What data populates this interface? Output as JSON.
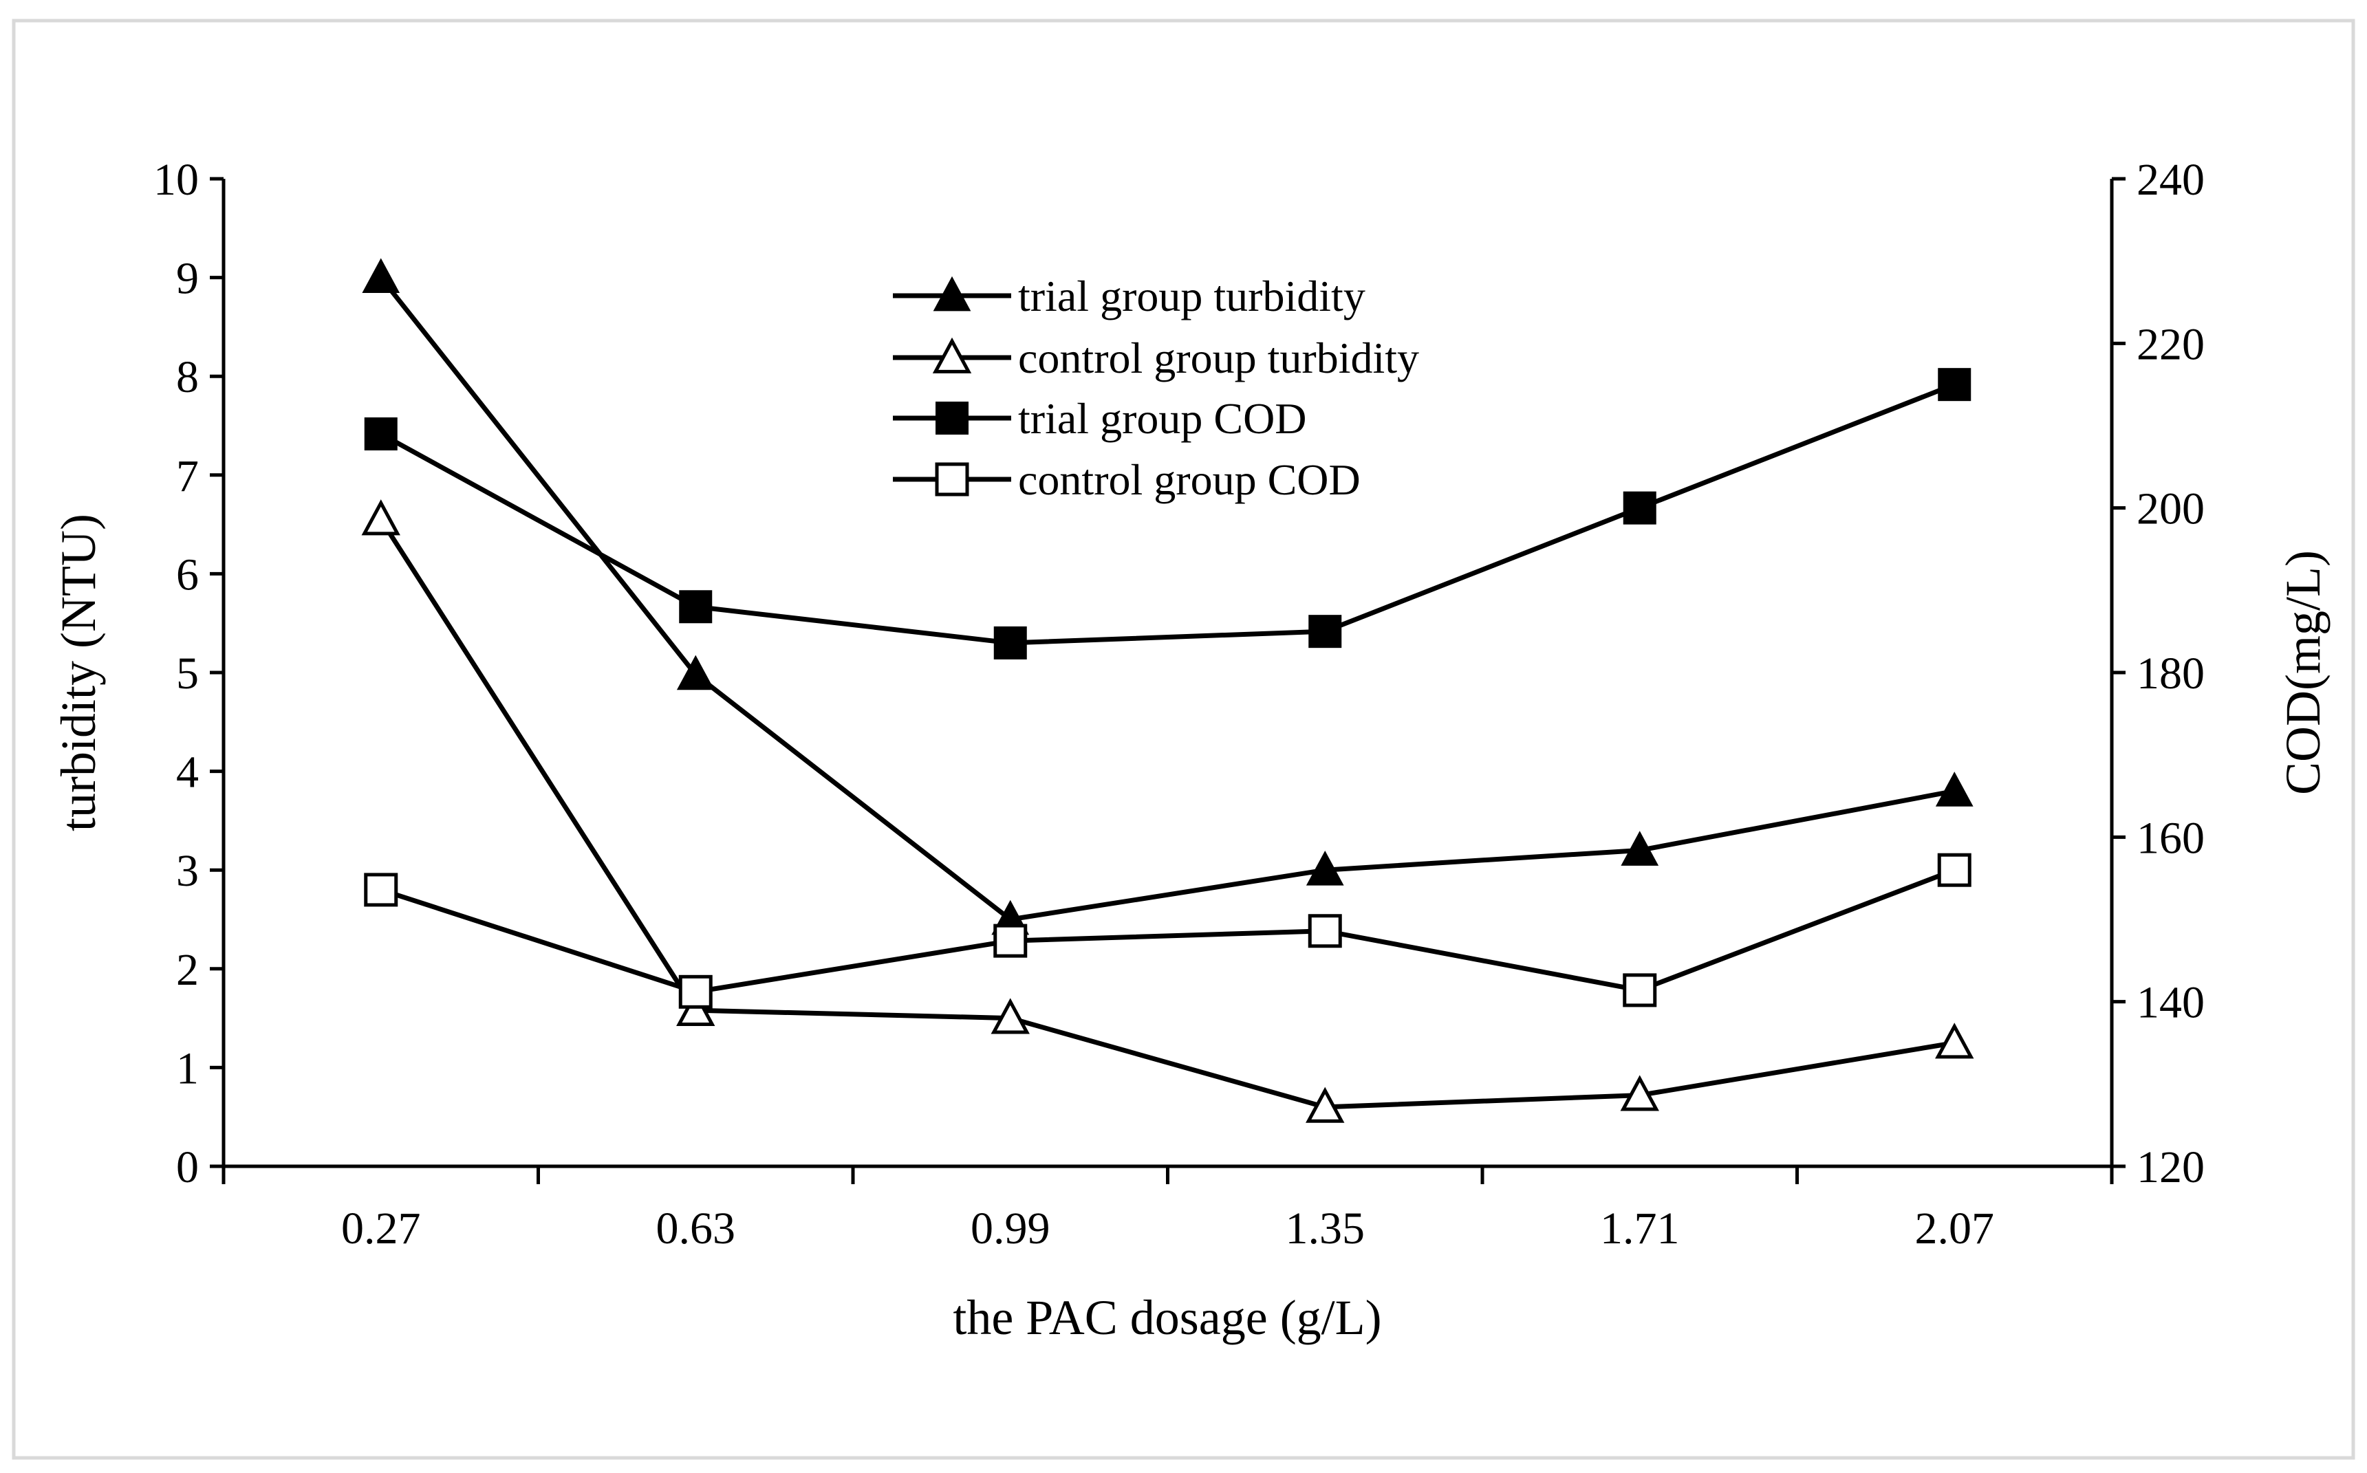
{
  "chart_data": {
    "type": "line",
    "x_categories": [
      "0.27",
      "0.63",
      "0.99",
      "1.35",
      "1.71",
      "2.07"
    ],
    "xlabel": "the PAC dosage (g/L)",
    "ylabel_left": "turbidity (NTU)",
    "ylabel_right": "COD(mg/L)",
    "ylim_left": [
      0,
      10
    ],
    "ylim_right": [
      120,
      240
    ],
    "yticks_left": [
      "0",
      "1",
      "2",
      "3",
      "4",
      "5",
      "6",
      "7",
      "8",
      "9",
      "10"
    ],
    "yticks_right": [
      "120",
      "140",
      "160",
      "180",
      "200",
      "220",
      "240"
    ],
    "legend_position": "top-center",
    "series": [
      {
        "name": "trial group turbidity",
        "axis": "left",
        "marker": "filled-triangle",
        "values": [
          9.0,
          4.98,
          2.5,
          3.0,
          3.2,
          3.8
        ]
      },
      {
        "name": "control group turbidity",
        "axis": "left",
        "marker": "open-triangle",
        "values": [
          6.55,
          1.58,
          1.5,
          0.6,
          0.72,
          1.25
        ]
      },
      {
        "name": "trial group COD",
        "axis": "right",
        "marker": "filled-square",
        "values": [
          209,
          188,
          183.6,
          185,
          200,
          215
        ]
      },
      {
        "name": "control group COD",
        "axis": "right",
        "marker": "open-square",
        "values": [
          153.6,
          141.2,
          147.4,
          148.6,
          141.4,
          156
        ]
      }
    ]
  }
}
